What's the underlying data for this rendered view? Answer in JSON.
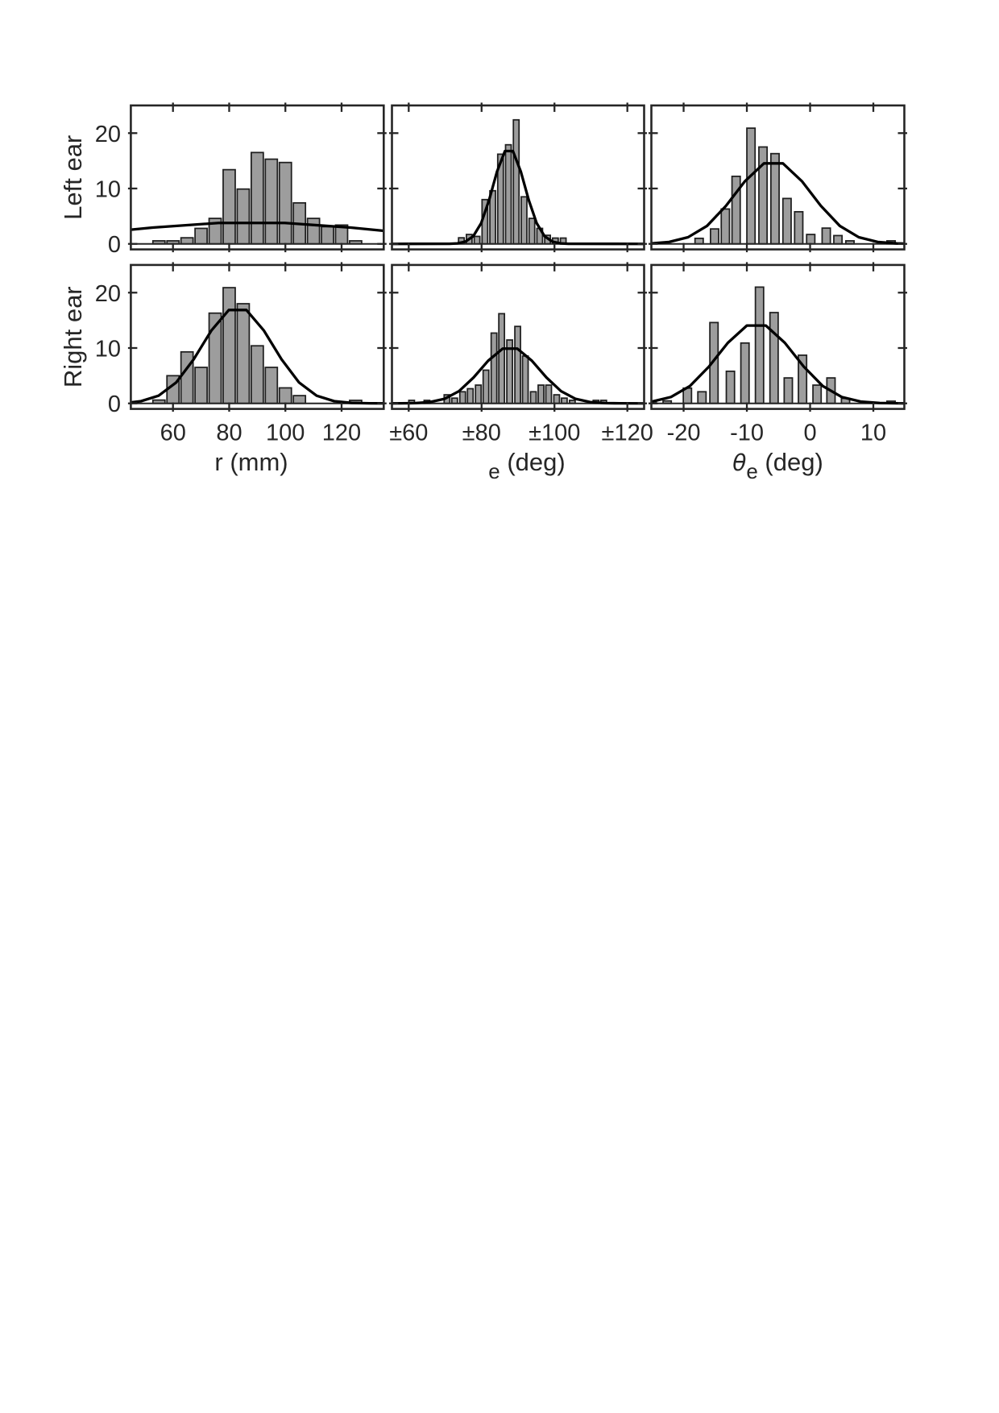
{
  "figure_title": "",
  "colors": {
    "bar_fill": "#9d9d9d",
    "bar_edge": "#1f1f1f",
    "curve": "#000000",
    "axis": "#262626",
    "text": "#262626",
    "background": "#ffffff"
  },
  "chart_data": {
    "type": "bar",
    "subtype": "histogram-grid-2x3-with-normal-fit",
    "ylim": [
      -1,
      25
    ],
    "yticks": [
      0,
      10,
      20
    ],
    "ytick_labels": [
      "0",
      "10",
      "20"
    ],
    "rows": [
      {
        "label": "Left ear"
      },
      {
        "label": "Right ear"
      }
    ],
    "columns": [
      {
        "xlabel_parts": [
          {
            "t": "r",
            "italic": false
          },
          {
            "t": " (mm)"
          }
        ],
        "xlim": [
          45,
          135
        ],
        "xticks": [
          60,
          80,
          100,
          120
        ],
        "xtick_labels": [
          "60",
          "80",
          "100",
          "120"
        ],
        "bar_width": 4.3
      },
      {
        "xlabel_parts": [
          {
            "t": "e",
            "sub": true
          },
          {
            "t": " (deg)"
          }
        ],
        "xlim": [
          55.4,
          124.6
        ],
        "xticks": [
          60,
          80,
          100,
          120
        ],
        "xtick_labels": [
          "±60",
          "±80",
          "±100",
          "±120"
        ],
        "bar_width": 1.55
      },
      {
        "xlabel_parts": [
          {
            "t": "θ",
            "italic": true
          },
          {
            "t": "e",
            "sub": true
          },
          {
            "t": " (deg)"
          }
        ],
        "xlim": [
          -25.1,
          14.9
        ],
        "xticks": [
          -20,
          -10,
          0,
          10
        ],
        "xtick_labels": [
          "-20",
          "-10",
          "0",
          "10"
        ],
        "bar_width": 1.3
      }
    ],
    "panels": [
      {
        "row": 0,
        "col": 0,
        "name": "left-ear-r",
        "bars": [
          [
            55,
            0.55
          ],
          [
            60,
            0.55
          ],
          [
            65,
            1.1
          ],
          [
            70,
            2.8
          ],
          [
            75,
            4.6
          ],
          [
            80,
            13.4
          ],
          [
            85,
            9.9
          ],
          [
            90,
            16.5
          ],
          [
            95,
            15.3
          ],
          [
            100,
            14.7
          ],
          [
            105,
            7.4
          ],
          [
            110,
            4.6
          ],
          [
            115,
            3.1
          ],
          [
            120,
            3.4
          ],
          [
            125,
            0.55
          ]
        ],
        "fit": {
          "amp": 3.9,
          "mu": 88,
          "sigma": 47
        }
      },
      {
        "row": 0,
        "col": 1,
        "name": "left-ear-phi",
        "bars": [
          [
            74.45,
            1.1
          ],
          [
            76.6,
            1.7
          ],
          [
            78.75,
            1.35
          ],
          [
            80.9,
            8.0
          ],
          [
            83.05,
            9.6
          ],
          [
            85.2,
            16.2
          ],
          [
            87.35,
            17.9
          ],
          [
            89.5,
            22.4
          ],
          [
            91.65,
            8.5
          ],
          [
            93.8,
            4.6
          ],
          [
            95.95,
            2.8
          ],
          [
            98.1,
            1.55
          ],
          [
            100.25,
            1.05
          ],
          [
            102.4,
            1.05
          ]
        ],
        "fit": {
          "amp": 17.3,
          "mu": 87.5,
          "sigma": 4.35
        }
      },
      {
        "row": 0,
        "col": 2,
        "name": "left-ear-theta",
        "bars": [
          [
            -17.55,
            1.0
          ],
          [
            -15.1,
            2.7
          ],
          [
            -13.4,
            6.3
          ],
          [
            -11.7,
            12.2
          ],
          [
            -9.35,
            20.9
          ],
          [
            -7.45,
            17.5
          ],
          [
            -5.55,
            16.3
          ],
          [
            -3.65,
            8.2
          ],
          [
            -1.8,
            5.8
          ],
          [
            0.1,
            1.7
          ],
          [
            2.55,
            2.85
          ],
          [
            4.4,
            1.5
          ],
          [
            6.3,
            0.55
          ],
          [
            12.8,
            0.55
          ]
        ],
        "fit": {
          "amp": 15.0,
          "mu": -5.8,
          "sigma": 6.0
        }
      },
      {
        "row": 1,
        "col": 0,
        "name": "right-ear-r",
        "bars": [
          [
            55,
            0.6
          ],
          [
            60,
            5.0
          ],
          [
            65,
            9.3
          ],
          [
            70,
            6.5
          ],
          [
            75,
            16.3
          ],
          [
            80,
            20.9
          ],
          [
            85,
            18.0
          ],
          [
            90,
            10.4
          ],
          [
            95,
            6.5
          ],
          [
            100,
            2.8
          ],
          [
            105,
            1.4
          ],
          [
            125,
            0.55
          ]
        ],
        "fit": {
          "amp": 17.4,
          "mu": 83,
          "sigma": 12.5
        }
      },
      {
        "row": 1,
        "col": 1,
        "name": "right-ear-phi",
        "bars": [
          [
            60.8,
            0.55
          ],
          [
            65.0,
            0.55
          ],
          [
            70.5,
            1.55
          ],
          [
            72.6,
            0.95
          ],
          [
            74.8,
            2.1
          ],
          [
            76.9,
            2.65
          ],
          [
            79.1,
            3.3
          ],
          [
            81.2,
            6.0
          ],
          [
            83.4,
            12.7
          ],
          [
            85.5,
            16.2
          ],
          [
            87.7,
            11.45
          ],
          [
            89.9,
            13.9
          ],
          [
            92.0,
            8.55
          ],
          [
            94.2,
            2.1
          ],
          [
            96.3,
            3.3
          ],
          [
            98.4,
            3.3
          ],
          [
            100.6,
            1.55
          ],
          [
            102.7,
            0.95
          ],
          [
            104.9,
            0.55
          ],
          [
            111.4,
            0.55
          ],
          [
            113.5,
            0.55
          ]
        ],
        "fit": {
          "amp": 10.2,
          "mu": 87.8,
          "sigma": 8.0
        }
      },
      {
        "row": 1,
        "col": 2,
        "name": "right-ear-theta",
        "bars": [
          [
            -25.0,
            0.4
          ],
          [
            -22.6,
            0.45
          ],
          [
            -19.4,
            2.75
          ],
          [
            -17.1,
            2.1
          ],
          [
            -15.2,
            14.6
          ],
          [
            -12.6,
            5.8
          ],
          [
            -10.3,
            10.9
          ],
          [
            -8.0,
            21.0
          ],
          [
            -5.7,
            16.4
          ],
          [
            -3.45,
            4.6
          ],
          [
            -1.2,
            8.7
          ],
          [
            1.1,
            3.3
          ],
          [
            3.3,
            4.6
          ],
          [
            5.6,
            0.9
          ],
          [
            12.8,
            0.4
          ]
        ],
        "fit": {
          "amp": 14.5,
          "mu": -8.5,
          "sigma": 6.0
        }
      }
    ]
  }
}
